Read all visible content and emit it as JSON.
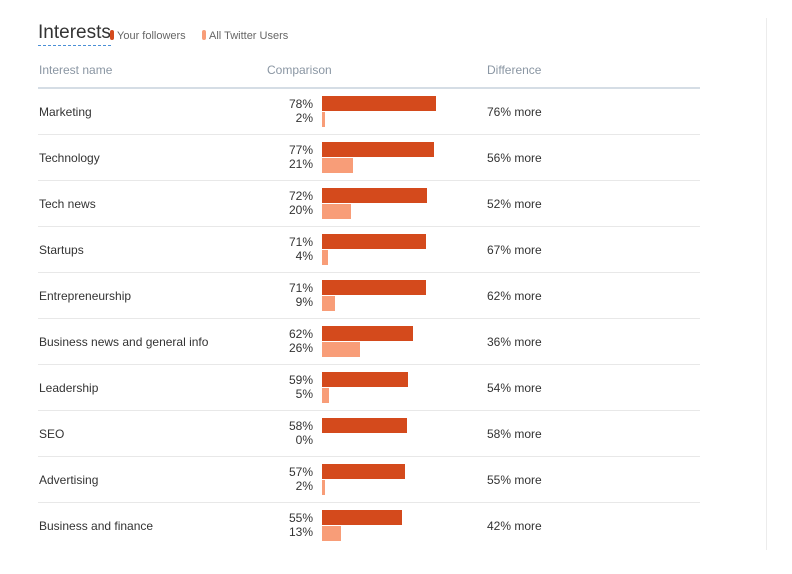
{
  "header": {
    "title": "Interests",
    "legend": [
      {
        "label": "Your followers",
        "color": "#d44a1c"
      },
      {
        "label": "All Twitter Users",
        "color": "#f89d78"
      }
    ]
  },
  "columns": {
    "name": "Interest name",
    "comparison": "Comparison",
    "difference": "Difference"
  },
  "rows": [
    {
      "name": "Marketing",
      "followers": "78%",
      "all": "2%",
      "followers_value": 78,
      "all_value": 2,
      "difference": "76% more"
    },
    {
      "name": "Technology",
      "followers": "77%",
      "all": "21%",
      "followers_value": 77,
      "all_value": 21,
      "difference": "56% more"
    },
    {
      "name": "Tech news",
      "followers": "72%",
      "all": "20%",
      "followers_value": 72,
      "all_value": 20,
      "difference": "52% more"
    },
    {
      "name": "Startups",
      "followers": "71%",
      "all": "4%",
      "followers_value": 71,
      "all_value": 4,
      "difference": "67% more"
    },
    {
      "name": "Entrepreneurship",
      "followers": "71%",
      "all": "9%",
      "followers_value": 71,
      "all_value": 9,
      "difference": "62% more"
    },
    {
      "name": "Business news and general info",
      "followers": "62%",
      "all": "26%",
      "followers_value": 62,
      "all_value": 26,
      "difference": "36% more"
    },
    {
      "name": "Leadership",
      "followers": "59%",
      "all": "5%",
      "followers_value": 59,
      "all_value": 5,
      "difference": "54% more"
    },
    {
      "name": "SEO",
      "followers": "58%",
      "all": "0%",
      "followers_value": 58,
      "all_value": 0,
      "difference": "58% more"
    },
    {
      "name": "Advertising",
      "followers": "57%",
      "all": "2%",
      "followers_value": 57,
      "all_value": 2,
      "difference": "55% more"
    },
    {
      "name": "Business and finance",
      "followers": "55%",
      "all": "13%",
      "followers_value": 55,
      "all_value": 13,
      "difference": "42% more"
    }
  ]
}
